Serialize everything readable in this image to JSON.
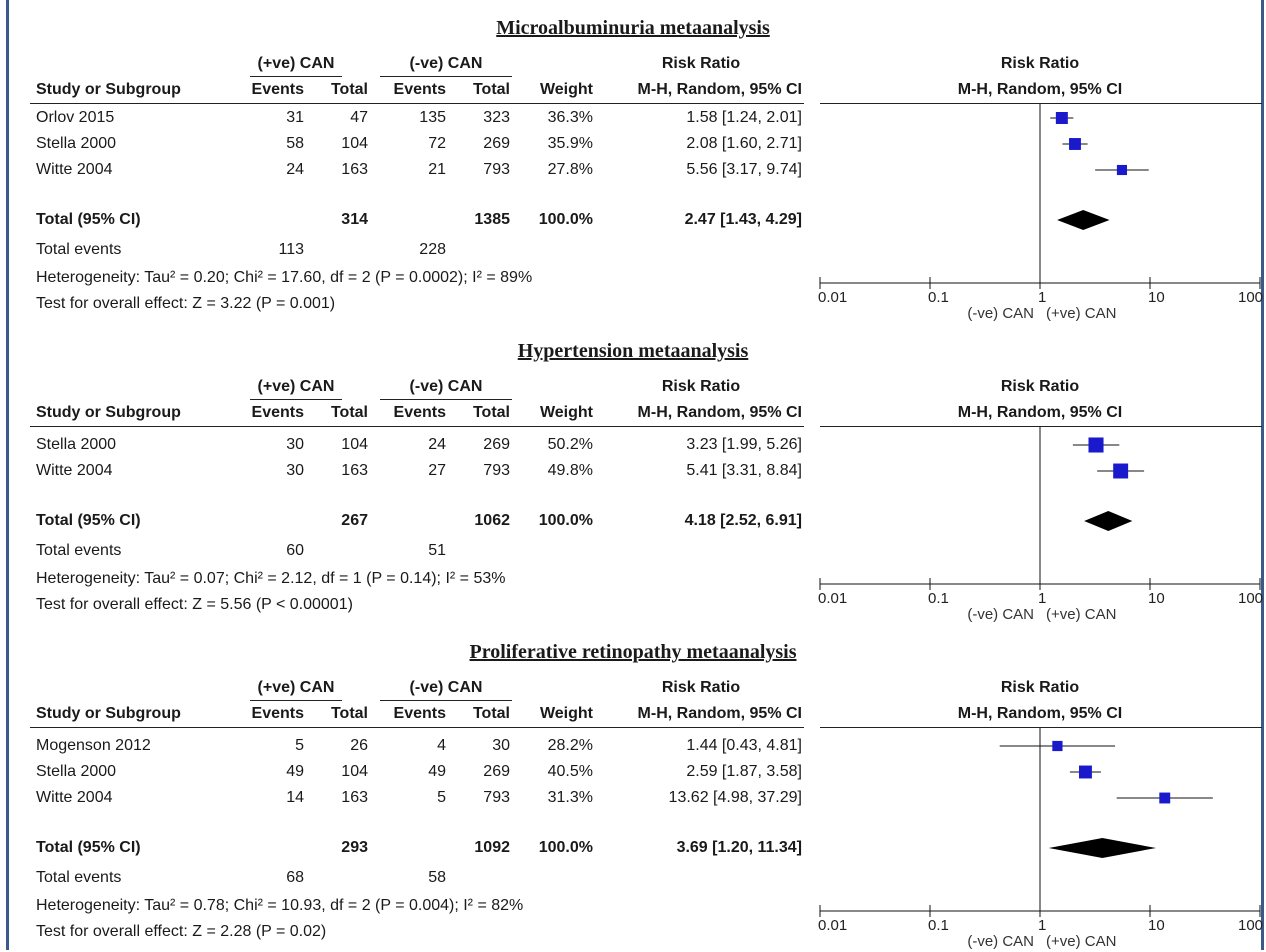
{
  "chart_data": [
    {
      "type": "forest",
      "title": "Microalbuminuria metaanalysis",
      "headers": {
        "study": "Study or Subgroup",
        "group1": "(+ve) CAN",
        "group2": "(-ve) CAN",
        "events": "Events",
        "total": "Total",
        "weight": "Weight",
        "rr": "Risk Ratio",
        "method": "M-H, Random, 95% CI",
        "plot_rr": "Risk Ratio",
        "plot_method": "M-H, Random, 95% CI"
      },
      "studies": [
        {
          "name": "Orlov 2015",
          "e1": "31",
          "t1": "47",
          "e2": "135",
          "t2": "323",
          "weight": "36.3%",
          "ci_text": "1.58 [1.24, 2.01]",
          "rr": 1.58,
          "lo": 1.24,
          "hi": 2.01,
          "w": 36.3
        },
        {
          "name": "Stella 2000",
          "e1": "58",
          "t1": "104",
          "e2": "72",
          "t2": "269",
          "weight": "35.9%",
          "ci_text": "2.08 [1.60, 2.71]",
          "rr": 2.08,
          "lo": 1.6,
          "hi": 2.71,
          "w": 35.9
        },
        {
          "name": "Witte 2004",
          "e1": "24",
          "t1": "163",
          "e2": "21",
          "t2": "793",
          "weight": "27.8%",
          "ci_text": "5.56 [3.17, 9.74]",
          "rr": 5.56,
          "lo": 3.17,
          "hi": 9.74,
          "w": 27.8
        }
      ],
      "total": {
        "label": "Total (95% CI)",
        "t1": "314",
        "t2": "1385",
        "weight": "100.0%",
        "ci_text": "2.47 [1.43, 4.29]",
        "rr": 2.47,
        "lo": 1.43,
        "hi": 4.29
      },
      "total_events": {
        "label": "Total events",
        "e1": "113",
        "e2": "228"
      },
      "heterogeneity": "Heterogeneity: Tau² = 0.20; Chi² = 17.60, df = 2 (P = 0.0002); I² = 89%",
      "overall": "Test for overall effect: Z = 3.22 (P = 0.001)",
      "axis": {
        "scale": "log",
        "ticks": [
          0.01,
          0.1,
          1,
          10,
          100
        ],
        "tick_labels": [
          "0.01",
          "0.1",
          "1",
          "10",
          "100"
        ],
        "left_label": "(-ve) CAN",
        "right_label": "(+ve) CAN"
      }
    },
    {
      "type": "forest",
      "title": "Hypertension metaanalysis",
      "headers": {
        "study": "Study or Subgroup",
        "group1": "(+ve) CAN",
        "group2": "(-ve) CAN",
        "events": "Events",
        "total": "Total",
        "weight": "Weight",
        "rr": "Risk Ratio",
        "method": "M-H, Random, 95% CI",
        "plot_rr": "Risk Ratio",
        "plot_method": "M-H, Random, 95% CI"
      },
      "studies": [
        {
          "name": "Stella 2000",
          "e1": "30",
          "t1": "104",
          "e2": "24",
          "t2": "269",
          "weight": "50.2%",
          "ci_text": "3.23 [1.99, 5.26]",
          "rr": 3.23,
          "lo": 1.99,
          "hi": 5.26,
          "w": 50.2
        },
        {
          "name": "Witte 2004",
          "e1": "30",
          "t1": "163",
          "e2": "27",
          "t2": "793",
          "weight": "49.8%",
          "ci_text": "5.41 [3.31, 8.84]",
          "rr": 5.41,
          "lo": 3.31,
          "hi": 8.84,
          "w": 49.8
        }
      ],
      "total": {
        "label": "Total (95% CI)",
        "t1": "267",
        "t2": "1062",
        "weight": "100.0%",
        "ci_text": "4.18 [2.52, 6.91]",
        "rr": 4.18,
        "lo": 2.52,
        "hi": 6.91
      },
      "total_events": {
        "label": "Total events",
        "e1": "60",
        "e2": "51"
      },
      "heterogeneity": "Heterogeneity: Tau² = 0.07; Chi² = 2.12, df = 1 (P = 0.14); I² = 53%",
      "overall": "Test for overall effect: Z = 5.56 (P < 0.00001)",
      "axis": {
        "scale": "log",
        "ticks": [
          0.01,
          0.1,
          1,
          10,
          100
        ],
        "tick_labels": [
          "0.01",
          "0.1",
          "1",
          "10",
          "100"
        ],
        "left_label": "(-ve) CAN",
        "right_label": "(+ve) CAN"
      }
    },
    {
      "type": "forest",
      "title": "Proliferative retinopathy metaanalysis",
      "headers": {
        "study": "Study or Subgroup",
        "group1": "(+ve) CAN",
        "group2": "(-ve) CAN",
        "events": "Events",
        "total": "Total",
        "weight": "Weight",
        "rr": "Risk Ratio",
        "method": "M-H, Random, 95% CI",
        "plot_rr": "Risk Ratio",
        "plot_method": "M-H, Random, 95% CI"
      },
      "studies": [
        {
          "name": "Mogenson 2012",
          "e1": "5",
          "t1": "26",
          "e2": "4",
          "t2": "30",
          "weight": "28.2%",
          "ci_text": "1.44 [0.43, 4.81]",
          "rr": 1.44,
          "lo": 0.43,
          "hi": 4.81,
          "w": 28.2
        },
        {
          "name": "Stella 2000",
          "e1": "49",
          "t1": "104",
          "e2": "49",
          "t2": "269",
          "weight": "40.5%",
          "ci_text": "2.59 [1.87, 3.58]",
          "rr": 2.59,
          "lo": 1.87,
          "hi": 3.58,
          "w": 40.5
        },
        {
          "name": "Witte 2004",
          "e1": "14",
          "t1": "163",
          "e2": "5",
          "t2": "793",
          "weight": "31.3%",
          "ci_text": "13.62 [4.98, 37.29]",
          "rr": 13.62,
          "lo": 4.98,
          "hi": 37.29,
          "w": 31.3
        }
      ],
      "total": {
        "label": "Total (95% CI)",
        "t1": "293",
        "t2": "1092",
        "weight": "100.0%",
        "ci_text": "3.69 [1.20, 11.34]",
        "rr": 3.69,
        "lo": 1.2,
        "hi": 11.34
      },
      "total_events": {
        "label": "Total events",
        "e1": "68",
        "e2": "58"
      },
      "heterogeneity": "Heterogeneity: Tau² = 0.78; Chi² = 10.93, df = 2 (P = 0.004); I² = 82%",
      "overall": "Test for overall effect: Z = 2.28 (P = 0.02)",
      "axis": {
        "scale": "log",
        "ticks": [
          0.01,
          0.1,
          1,
          10,
          100
        ],
        "tick_labels": [
          "0.01",
          "0.1",
          "1",
          "10",
          "100"
        ],
        "left_label": "(-ve) CAN",
        "right_label": "(+ve) CAN"
      }
    }
  ],
  "colors": {
    "square": "#1a1acc",
    "diamond": "#000000",
    "frame": "#3b5a8a"
  }
}
